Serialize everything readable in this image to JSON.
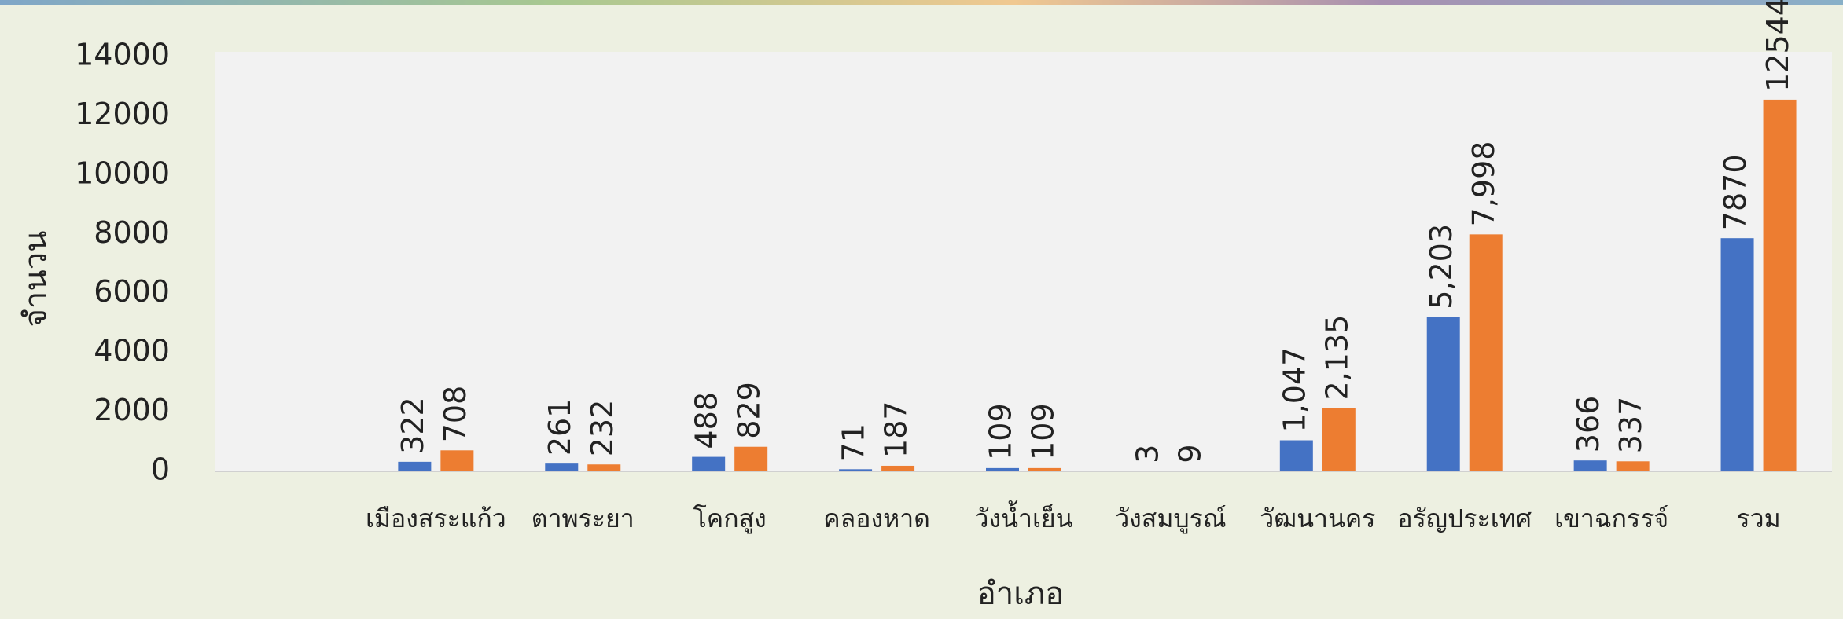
{
  "chart_data": {
    "type": "bar",
    "xlabel": "อำเภอ",
    "ylabel": "จำนวน",
    "categories": [
      null,
      "เมืองสระแก้ว",
      "ตาพระยา",
      "โคกสูง",
      "คลองหาด",
      "วังน้ำเย็น",
      "วังสมบูรณ์",
      "วัฒนานคร",
      "อรัญประเทศ",
      "เขาฉกรรจ์",
      "รวม"
    ],
    "series": [
      {
        "color": "#4472c4",
        "values": [
          null,
          322,
          261,
          488,
          71,
          109,
          3,
          1047,
          5203,
          366,
          7870
        ],
        "value_labels": [
          null,
          "322",
          "261",
          "488",
          "71",
          "109",
          "3",
          "1,047",
          "5,203",
          "366",
          "7870"
        ]
      },
      {
        "color": "#ed7d31",
        "values": [
          null,
          708,
          232,
          829,
          187,
          109,
          9,
          2135,
          7998,
          337,
          12544
        ],
        "value_labels": [
          null,
          "708",
          "232",
          "829",
          "187",
          "109",
          "9",
          "2,135",
          "7,998",
          "337",
          "12544"
        ]
      }
    ],
    "ylim": [
      0,
      14000
    ],
    "yticks": [
      0,
      2000,
      4000,
      6000,
      8000,
      10000,
      12000,
      14000
    ],
    "grid": false
  }
}
